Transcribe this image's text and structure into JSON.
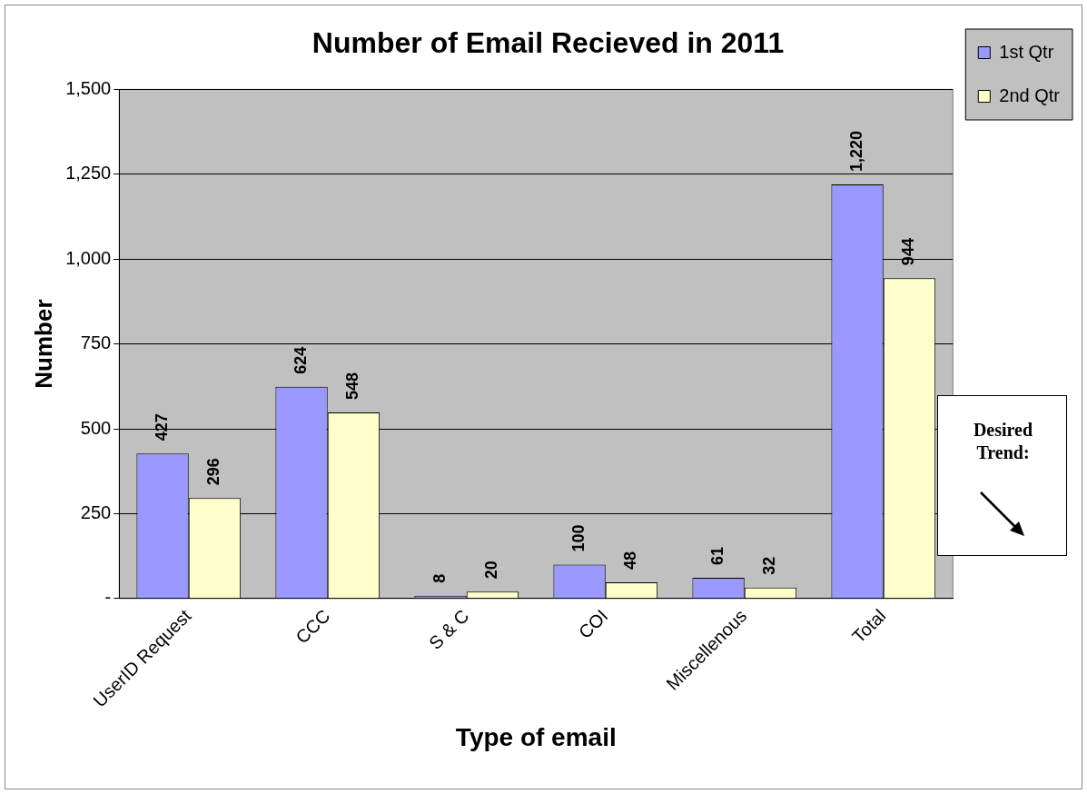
{
  "chart_data": {
    "type": "bar",
    "title": "Number of Email Recieved in 2011",
    "xlabel": "Type of email",
    "ylabel": "Number",
    "categories": [
      "UserID Request",
      "CCC",
      "S & C",
      "COI",
      "Miscellenous",
      "Total"
    ],
    "series": [
      {
        "name": "1st Qtr",
        "color": "#9999ff",
        "values": [
          427,
          624,
          8,
          100,
          61,
          1220
        ],
        "value_labels": [
          "427",
          "624",
          "8",
          "100",
          "61",
          "1,220"
        ]
      },
      {
        "name": "2nd Qtr",
        "color": "#ffffcc",
        "values": [
          296,
          548,
          20,
          48,
          32,
          944
        ],
        "value_labels": [
          "296",
          "548",
          "20",
          "48",
          "32",
          "944"
        ]
      }
    ],
    "ylim": [
      0,
      1500
    ],
    "yticks": [
      {
        "value": 0,
        "label": "-"
      },
      250,
      500,
      750,
      {
        "value": 1000,
        "label": "1,000"
      },
      {
        "value": 1250,
        "label": "1,250"
      },
      {
        "value": 1500,
        "label": "1,500"
      }
    ],
    "grid": "y",
    "legend": "top right",
    "annotations": [
      "Desired Trend:"
    ]
  }
}
